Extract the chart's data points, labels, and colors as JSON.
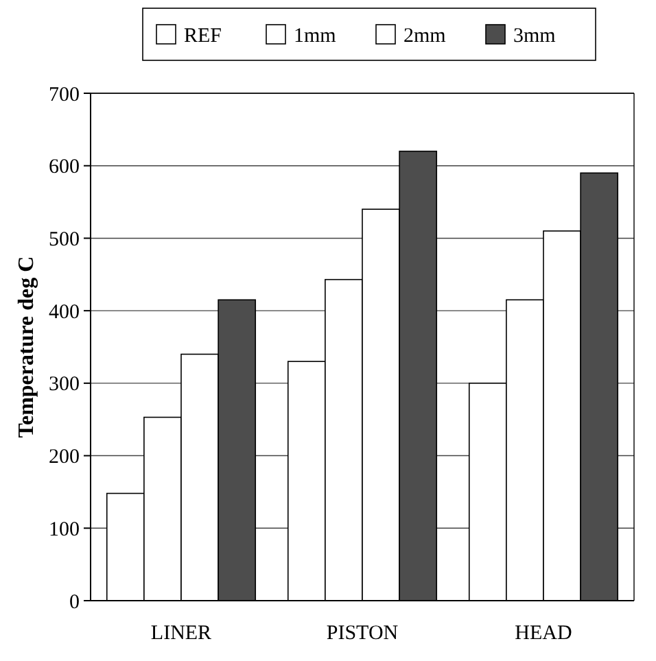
{
  "chart_data": {
    "type": "bar",
    "ylabel": "Temperature deg C",
    "categories": [
      "LINER",
      "PISTON",
      "HEAD"
    ],
    "series": [
      {
        "name": "REF",
        "color": "#ffffff",
        "values": [
          148,
          330,
          300
        ]
      },
      {
        "name": "1mm",
        "color": "#ffffff",
        "values": [
          253,
          443,
          415
        ]
      },
      {
        "name": "2mm",
        "color": "#ffffff",
        "values": [
          340,
          540,
          510
        ]
      },
      {
        "name": "3mm",
        "color": "#4d4d4d",
        "values": [
          415,
          620,
          590
        ]
      }
    ],
    "ylim": [
      0,
      700
    ],
    "yticks": [
      0,
      100,
      200,
      300,
      400,
      500,
      600,
      700
    ],
    "grid": "y",
    "legend": "top"
  }
}
